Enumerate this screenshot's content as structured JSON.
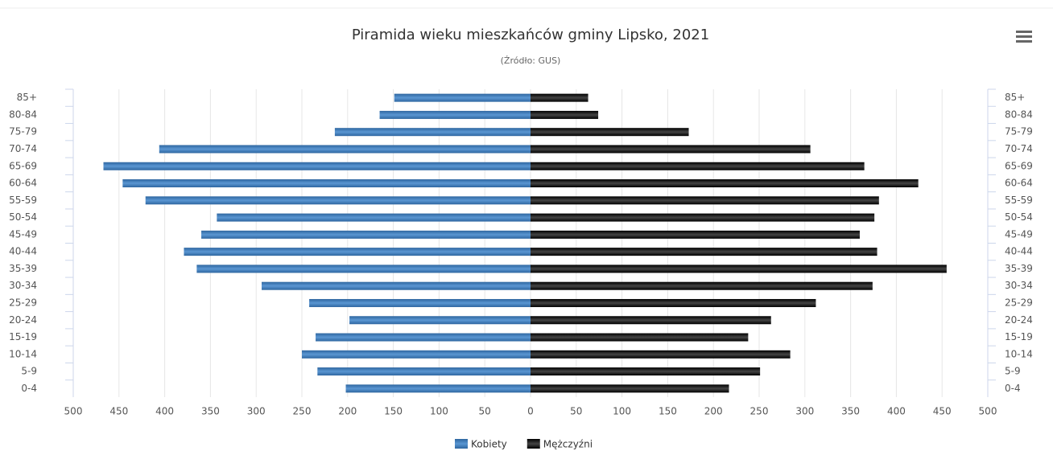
{
  "chart_data": {
    "type": "pyramid",
    "title": "Piramida wieku mieszkańców gminy Lipsko, 2021",
    "subtitle": "(Źródło: GUS)",
    "categories": [
      "85+",
      "80-84",
      "75-79",
      "70-74",
      "65-69",
      "60-64",
      "55-59",
      "50-54",
      "45-49",
      "40-44",
      "35-39",
      "30-34",
      "25-29",
      "20-24",
      "15-19",
      "10-14",
      "5-9",
      "0-4"
    ],
    "series": [
      {
        "name": "Kobiety",
        "color": "#3f7dbd",
        "direction": "left",
        "values": [
          149,
          165,
          214,
          406,
          467,
          446,
          421,
          343,
          360,
          379,
          365,
          294,
          242,
          198,
          235,
          250,
          233,
          202
        ]
      },
      {
        "name": "Mężczyźni",
        "color": "#222222",
        "direction": "right",
        "values": [
          63,
          74,
          173,
          306,
          365,
          424,
          381,
          376,
          360,
          379,
          455,
          374,
          312,
          263,
          238,
          284,
          251,
          217
        ]
      }
    ],
    "xlim": [
      0,
      500
    ],
    "xticks": [
      0,
      50,
      100,
      150,
      200,
      250,
      300,
      350,
      400,
      450,
      500
    ],
    "grid": true,
    "legend": "bottom"
  }
}
